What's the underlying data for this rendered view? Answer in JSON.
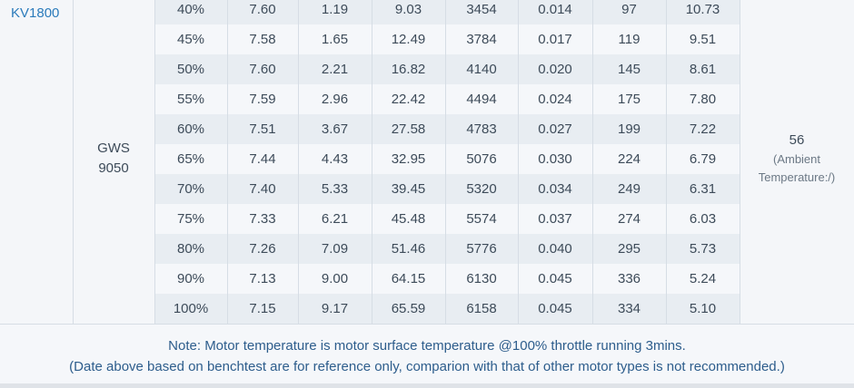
{
  "motor": "KV1800",
  "propeller": [
    "GWS",
    "9050"
  ],
  "rows": [
    [
      "40%",
      "7.60",
      "1.19",
      "9.03",
      "3454",
      "0.014",
      "97",
      "10.73"
    ],
    [
      "45%",
      "7.58",
      "1.65",
      "12.49",
      "3784",
      "0.017",
      "119",
      "9.51"
    ],
    [
      "50%",
      "7.60",
      "2.21",
      "16.82",
      "4140",
      "0.020",
      "145",
      "8.61"
    ],
    [
      "55%",
      "7.59",
      "2.96",
      "22.42",
      "4494",
      "0.024",
      "175",
      "7.80"
    ],
    [
      "60%",
      "7.51",
      "3.67",
      "27.58",
      "4783",
      "0.027",
      "199",
      "7.22"
    ],
    [
      "65%",
      "7.44",
      "4.43",
      "32.95",
      "5076",
      "0.030",
      "224",
      "6.79"
    ],
    [
      "70%",
      "7.40",
      "5.33",
      "39.45",
      "5320",
      "0.034",
      "249",
      "6.31"
    ],
    [
      "75%",
      "7.33",
      "6.21",
      "45.48",
      "5574",
      "0.037",
      "274",
      "6.03"
    ],
    [
      "80%",
      "7.26",
      "7.09",
      "51.46",
      "5776",
      "0.040",
      "295",
      "5.73"
    ],
    [
      "90%",
      "7.13",
      "9.00",
      "64.15",
      "6130",
      "0.045",
      "336",
      "5.24"
    ],
    [
      "100%",
      "7.15",
      "9.17",
      "65.59",
      "6158",
      "0.045",
      "334",
      "5.10"
    ]
  ],
  "temperature": {
    "value": "56",
    "note": "(Ambient Temperature:/)"
  },
  "notes": [
    "Note: Motor temperature is motor surface temperature @100% throttle running 3mins.",
    "(Date above based on benchtest are for reference only, comparion with that of other motor types is not recommended.)"
  ]
}
